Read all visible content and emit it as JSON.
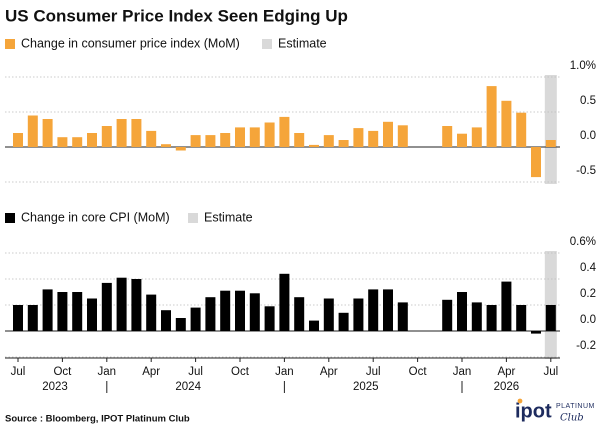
{
  "chart_data": [
    {
      "type": "bar",
      "title": "US Consumer Price Index Seen Edging Up",
      "series": [
        {
          "name": "Change in consumer price index (MoM)",
          "color": "#f5a53a",
          "values": [
            0.2,
            0.45,
            0.4,
            0.14,
            0.14,
            0.2,
            0.3,
            0.4,
            0.4,
            0.23,
            0.04,
            -0.05,
            0.17,
            0.17,
            0.2,
            0.28,
            0.28,
            0.35,
            0.43,
            0.2,
            0.03,
            0.17,
            0.1,
            0.27,
            0.23,
            0.36,
            0.31,
            null,
            null,
            0.3,
            0.19,
            0.28,
            0.87,
            0.66,
            0.49,
            -0.43,
            0.1
          ]
        }
      ],
      "estimate": {
        "name": "Estimate",
        "color": "#d9d9d9",
        "from": 36
      },
      "ylim": [
        -0.5,
        1.0
      ],
      "yticks": [
        {
          "value": 1.0,
          "label": "1.0%"
        },
        0.5,
        {
          "value": 0,
          "label": "0.0"
        },
        -0.5
      ],
      "grid": true
    },
    {
      "type": "bar",
      "categories": [
        "Jul",
        null,
        null,
        "Oct",
        null,
        null,
        "Jan",
        null,
        null,
        "Apr",
        null,
        null,
        "Jul",
        null,
        null,
        "Oct",
        null,
        null,
        "Jan",
        null,
        null,
        "Apr",
        null,
        null,
        "Jul",
        null,
        null,
        "Oct",
        null,
        null,
        "Jan",
        null,
        null,
        "Apr",
        null,
        null,
        "Jul"
      ],
      "x_groups": [
        "2023",
        "2024",
        "2025",
        "2026"
      ],
      "series": [
        {
          "name": "Change in core CPI (MoM)",
          "color": "#000000",
          "values": [
            0.2,
            0.2,
            0.32,
            0.3,
            0.3,
            0.25,
            0.37,
            0.41,
            0.4,
            0.28,
            0.16,
            0.1,
            0.18,
            0.26,
            0.31,
            0.31,
            0.29,
            0.19,
            0.44,
            0.26,
            0.08,
            0.25,
            0.14,
            0.25,
            0.32,
            0.32,
            0.22,
            null,
            null,
            0.24,
            0.3,
            0.22,
            0.2,
            0.38,
            0.2,
            -0.02,
            0.2
          ]
        }
      ],
      "estimate": {
        "name": "Estimate",
        "color": "#d9d9d9",
        "from": 36
      },
      "ylim": [
        -0.2,
        0.6
      ],
      "yticks": [
        {
          "value": 0.6,
          "label": "0.6%"
        },
        0.4,
        0.2,
        {
          "value": 0,
          "label": "0.0"
        },
        -0.2
      ],
      "grid": true
    }
  ],
  "source": "Source : Bloomberg, IPOT Platinum Club",
  "logo": {
    "name": "ipot",
    "tag": "PLATINUM",
    "script": "Club"
  }
}
